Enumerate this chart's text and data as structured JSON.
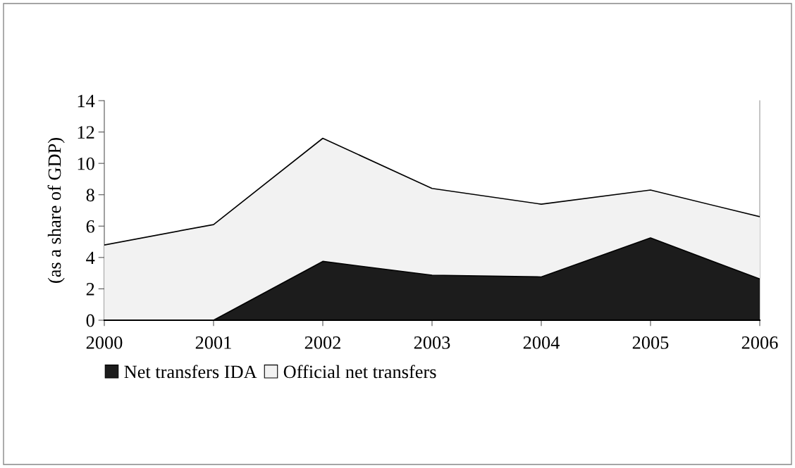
{
  "chart_data": {
    "type": "area",
    "ylabel": "(as a share of GDP)",
    "categories": [
      "2000",
      "2001",
      "2002",
      "2003",
      "2004",
      "2005",
      "2006"
    ],
    "series": [
      {
        "name": "Net transfers IDA",
        "color": "#1c1c1c",
        "values": [
          0,
          0,
          3.75,
          2.87,
          2.76,
          5.25,
          2.63
        ]
      },
      {
        "name": "Official net transfers",
        "color": "#f2f2f2",
        "values": [
          4.8,
          6.1,
          11.6,
          8.4,
          7.4,
          8.3,
          6.6
        ]
      }
    ],
    "ylim": [
      0,
      14
    ],
    "yticks": [
      0,
      2,
      4,
      6,
      8,
      10,
      12,
      14
    ],
    "grid": false,
    "legend": "bottom"
  }
}
